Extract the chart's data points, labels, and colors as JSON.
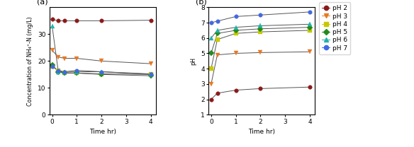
{
  "panel_a": {
    "title": "(a)",
    "xlabel": "Time hr)",
    "ylabel": "Concentration of NH₄⁺-N (mg/L)",
    "xlim": [
      -0.1,
      4.2
    ],
    "ylim": [
      0,
      40
    ],
    "yticks": [
      0,
      10,
      20,
      30
    ],
    "xticks": [
      0,
      1,
      2,
      3,
      4
    ],
    "series": {
      "pH2": {
        "x": [
          0,
          0.25,
          0.5,
          1,
          2,
          4
        ],
        "y": [
          35.5,
          35.0,
          35.0,
          35.0,
          35.0,
          35.2
        ],
        "color": "#8B1A1A",
        "marker": "o",
        "markersize": 4
      },
      "pH3": {
        "x": [
          0,
          0.25,
          0.5,
          1,
          2,
          4
        ],
        "y": [
          24.0,
          21.5,
          21.0,
          21.0,
          20.0,
          19.0
        ],
        "color": "#E87722",
        "marker": "v",
        "markersize": 4
      },
      "pH4": {
        "x": [
          0,
          0.25,
          0.5,
          1,
          2,
          4
        ],
        "y": [
          18.0,
          16.5,
          15.5,
          15.5,
          15.2,
          15.0
        ],
        "color": "#C8C800",
        "marker": "s",
        "markersize": 4
      },
      "pH5": {
        "x": [
          0,
          0.25,
          0.5,
          1,
          2,
          4
        ],
        "y": [
          18.5,
          16.0,
          15.5,
          15.5,
          15.0,
          14.5
        ],
        "color": "#228B22",
        "marker": "D",
        "markersize": 4
      },
      "pH6": {
        "x": [
          0,
          0.25,
          0.5,
          1,
          2,
          4
        ],
        "y": [
          33.0,
          16.0,
          15.8,
          16.0,
          16.0,
          15.2
        ],
        "color": "#20B2AA",
        "marker": "^",
        "markersize": 4
      },
      "pH7": {
        "x": [
          0,
          0.25,
          0.5,
          1,
          2,
          4
        ],
        "y": [
          18.0,
          16.5,
          16.0,
          16.5,
          16.0,
          15.0
        ],
        "color": "#4169E1",
        "marker": "o",
        "markersize": 4
      }
    }
  },
  "panel_b": {
    "title": "(b)",
    "xlabel": "Time hr)",
    "ylabel": "pH",
    "xlim": [
      -0.1,
      4.2
    ],
    "ylim": [
      1,
      8
    ],
    "yticks": [
      1,
      2,
      3,
      4,
      5,
      6,
      7,
      8
    ],
    "xticks": [
      0,
      1,
      2,
      3,
      4
    ],
    "series": {
      "pH2": {
        "x": [
          0,
          0.25,
          1,
          2,
          4
        ],
        "y": [
          2.0,
          2.4,
          2.6,
          2.7,
          2.8
        ],
        "color": "#8B1A1A",
        "marker": "o",
        "markersize": 4
      },
      "pH3": {
        "x": [
          0,
          0.25,
          1,
          2,
          4
        ],
        "y": [
          3.0,
          4.9,
          5.0,
          5.05,
          5.1
        ],
        "color": "#E87722",
        "marker": "v",
        "markersize": 4
      },
      "pH4": {
        "x": [
          0,
          0.25,
          1,
          2,
          4
        ],
        "y": [
          4.0,
          5.9,
          6.3,
          6.4,
          6.5
        ],
        "color": "#C8C800",
        "marker": "s",
        "markersize": 4
      },
      "pH5": {
        "x": [
          0,
          0.25,
          1,
          2,
          4
        ],
        "y": [
          5.0,
          6.3,
          6.5,
          6.6,
          6.7
        ],
        "color": "#228B22",
        "marker": "D",
        "markersize": 4
      },
      "pH6": {
        "x": [
          0,
          0.25,
          1,
          2,
          4
        ],
        "y": [
          6.0,
          6.5,
          6.7,
          6.8,
          6.9
        ],
        "color": "#20B2AA",
        "marker": "^",
        "markersize": 4
      },
      "pH7": {
        "x": [
          0,
          0.25,
          1,
          2,
          4
        ],
        "y": [
          7.0,
          7.1,
          7.4,
          7.5,
          7.7
        ],
        "color": "#4169E1",
        "marker": "o",
        "markersize": 4
      }
    }
  },
  "legend_labels": [
    "pH 2",
    "pH 3",
    "pH 4",
    "pH 5",
    "pH 6",
    "pH 7"
  ],
  "legend_colors": [
    "#8B1A1A",
    "#E87722",
    "#C8C800",
    "#228B22",
    "#20B2AA",
    "#4169E1"
  ],
  "legend_markers": [
    "o",
    "v",
    "s",
    "D",
    "^",
    "o"
  ],
  "line_color": "#555555"
}
